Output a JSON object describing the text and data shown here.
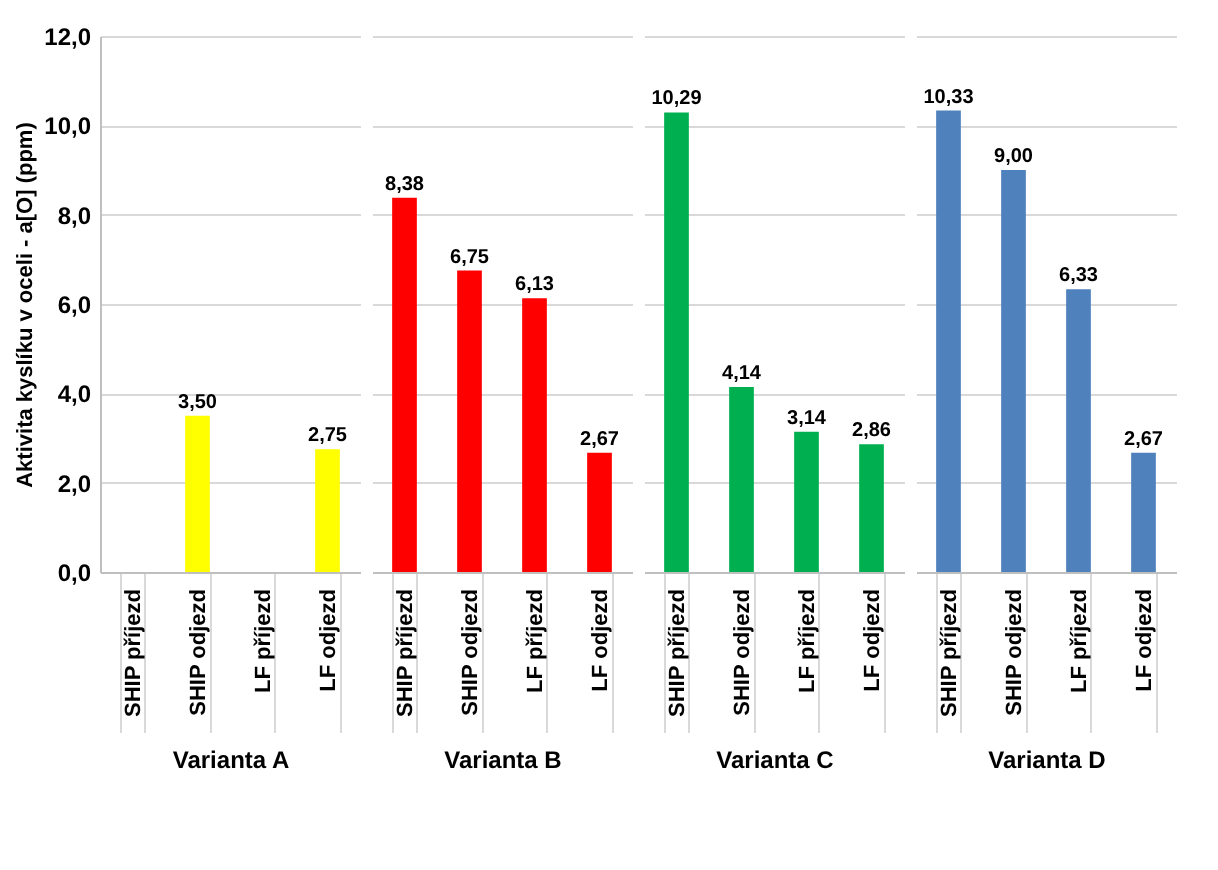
{
  "chart_data": {
    "type": "bar",
    "ylabel": "Aktivita kyslíku v oceli - a[O] (ppm)",
    "categories": [
      "SHIP příjezd",
      "SHIP odjezd",
      "LF příjezd",
      "LF odjezd",
      "SHIP příjezd",
      "SHIP odjezd",
      "LF příjezd",
      "LF odjezd",
      "SHIP příjezd",
      "SHIP odjezd",
      "LF příjezd",
      "LF odjezd",
      "SHIP příjezd",
      "SHIP odjezd",
      "LF příjezd",
      "LF odjezd"
    ],
    "series": [
      {
        "name": "Varianta A",
        "color": "#ffff00",
        "values": [
          null,
          3.5,
          null,
          2.75,
          null,
          null,
          null,
          null,
          null,
          null,
          null,
          null,
          null,
          null,
          null,
          null
        ],
        "value_labels": [
          null,
          "3,50",
          null,
          "2,75",
          null,
          null,
          null,
          null,
          null,
          null,
          null,
          null,
          null,
          null,
          null,
          null
        ]
      },
      {
        "name": "Varianta B",
        "color": "#ff0000",
        "values": [
          null,
          null,
          null,
          null,
          8.38,
          6.75,
          6.13,
          2.67,
          null,
          null,
          null,
          null,
          null,
          null,
          null,
          null
        ],
        "value_labels": [
          null,
          null,
          null,
          null,
          "8,38",
          "6,75",
          "6,13",
          "2,67",
          null,
          null,
          null,
          null,
          null,
          null,
          null,
          null
        ]
      },
      {
        "name": "Varianta C",
        "color": "#00b050",
        "values": [
          null,
          null,
          null,
          null,
          null,
          null,
          null,
          null,
          10.29,
          4.14,
          3.14,
          2.86,
          null,
          null,
          null,
          null
        ],
        "value_labels": [
          null,
          null,
          null,
          null,
          null,
          null,
          null,
          null,
          "10,29",
          "4,14",
          "3,14",
          "2,86",
          null,
          null,
          null,
          null
        ]
      },
      {
        "name": "Varianta D",
        "color": "#4f81bd",
        "values": [
          null,
          null,
          null,
          null,
          null,
          null,
          null,
          null,
          null,
          null,
          null,
          null,
          10.33,
          9.0,
          6.33,
          2.67
        ],
        "value_labels": [
          null,
          null,
          null,
          null,
          null,
          null,
          null,
          null,
          null,
          null,
          null,
          null,
          "10,33",
          "9,00",
          "6,33",
          "2,67"
        ]
      }
    ],
    "ylim": [
      0,
      12
    ],
    "yticks": [
      {
        "value": 0,
        "label": "0,0"
      },
      {
        "value": 2,
        "label": "2,0"
      },
      {
        "value": 4,
        "label": "4,0"
      },
      {
        "value": 6,
        "label": "6,0"
      },
      {
        "value": 8,
        "label": "8,0"
      },
      {
        "value": 10,
        "label": "10,0"
      },
      {
        "value": 12,
        "label": "12,0"
      }
    ],
    "grid": "y"
  }
}
